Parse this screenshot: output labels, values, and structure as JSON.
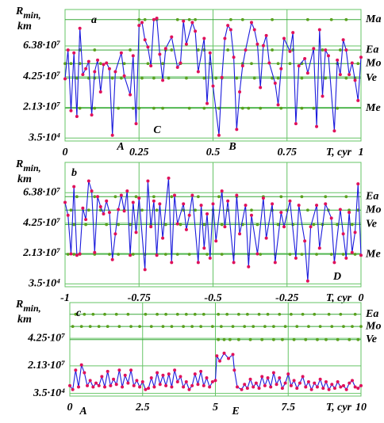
{
  "chart_data": [
    {
      "type": "line",
      "panel": "a",
      "ylabel": {
        "symbol": "R",
        "subscript": "min,",
        "unit": "km"
      },
      "xlabel": "T, cyr",
      "xlim": [
        0,
        1
      ],
      "xticks": [
        0,
        0.25,
        0.5,
        0.75,
        1
      ],
      "ylim": [
        -2000000.0,
        89000000.0
      ],
      "yticks": [
        {
          "value": 35000.0,
          "label": "3.5·10⁴"
        },
        {
          "value": 21300000.0,
          "label": "2.13·10⁷"
        },
        {
          "value": 42500000.0,
          "label": "4.25·10⁷"
        },
        {
          "value": 63800000.0,
          "label": "6.38·10⁷"
        }
      ],
      "line_color": "#1a1adc",
      "marker_color": "#e0105a",
      "planet_color": "#5aa01e",
      "grid": true,
      "x": [
        0,
        0.01,
        0.02,
        0.03,
        0.04,
        0.05,
        0.06,
        0.07,
        0.08,
        0.09,
        0.1,
        0.11,
        0.12,
        0.13,
        0.14,
        0.15,
        0.16,
        0.17,
        0.19,
        0.2,
        0.22,
        0.23,
        0.24,
        0.25,
        0.26,
        0.27,
        0.28,
        0.29,
        0.3,
        0.31,
        0.32,
        0.33,
        0.34,
        0.36,
        0.38,
        0.39,
        0.4,
        0.41,
        0.43,
        0.44,
        0.45,
        0.47,
        0.48,
        0.49,
        0.5,
        0.52,
        0.53,
        0.54,
        0.55,
        0.56,
        0.57,
        0.58,
        0.59,
        0.6,
        0.61,
        0.63,
        0.64,
        0.65,
        0.66,
        0.67,
        0.68,
        0.69,
        0.71,
        0.72,
        0.73,
        0.74,
        0.76,
        0.77,
        0.78,
        0.79,
        0.81,
        0.82,
        0.84,
        0.85,
        0.86,
        0.87,
        0.88,
        0.89,
        0.91,
        0.92,
        0.93,
        0.94,
        0.95,
        0.96,
        0.97,
        0.98,
        0.99,
        1.0
      ],
      "values": [
        41000000.0,
        61000000.0,
        19000000.0,
        59000000.0,
        15000000.0,
        76000000.0,
        44000000.0,
        48000000.0,
        53000000.0,
        16000000.0,
        46000000.0,
        54000000.0,
        32000000.0,
        51000000.0,
        52000000.0,
        48000000.0,
        2000000.0,
        46000000.0,
        59000000.0,
        43000000.0,
        30000000.0,
        57000000.0,
        10000000.0,
        78000000.0,
        80000000.0,
        68000000.0,
        63000000.0,
        50000000.0,
        82000000.0,
        83000000.0,
        58000000.0,
        40000000.0,
        62000000.0,
        70000000.0,
        49000000.0,
        52000000.0,
        81000000.0,
        65000000.0,
        80000000.0,
        74000000.0,
        46000000.0,
        69000000.0,
        24000000.0,
        59000000.0,
        36000000.0,
        2000000.0,
        42000000.0,
        69000000.0,
        78000000.0,
        75000000.0,
        56000000.0,
        6000000.0,
        32000000.0,
        50000000.0,
        61000000.0,
        80000000.0,
        75000000.0,
        65000000.0,
        35000000.0,
        64000000.0,
        71000000.0,
        52000000.0,
        38000000.0,
        23000000.0,
        48000000.0,
        69000000.0,
        60000000.0,
        73000000.0,
        10000000.0,
        50000000.0,
        55000000.0,
        45000000.0,
        62000000.0,
        8000000.0,
        75000000.0,
        29000000.0,
        61000000.0,
        57000000.0,
        5000000.0,
        54000000.0,
        44000000.0,
        68000000.0,
        61000000.0,
        44000000.0,
        52000000.0,
        40000000.0,
        26000000.0,
        56000000.0
      ],
      "planets": [
        {
          "name": "Ma",
          "value": 82000000.0,
          "x": [
            0.25,
            0.27,
            0.31,
            0.38,
            0.42,
            0.44,
            0.56,
            0.6,
            0.7,
            0.82,
            0.9,
            0.95
          ]
        },
        {
          "name": "Ea",
          "value": 61000000.0,
          "x": [
            0.05,
            0.1,
            0.22,
            0.34,
            0.36,
            0.45,
            0.47,
            0.55,
            0.7,
            0.77,
            0.87,
            0.93
          ]
        },
        {
          "name": "Mo",
          "value": 51600000.0,
          "x": [
            0.0,
            0.02,
            0.05,
            0.12,
            0.2,
            0.28,
            0.33,
            0.39,
            0.49,
            0.6,
            0.63,
            0.72,
            0.76,
            0.8,
            0.92,
            0.99
          ]
        },
        {
          "name": "Ve",
          "value": 41500000.0,
          "x": [
            0.04,
            0.08,
            0.1,
            0.16,
            0.19,
            0.26,
            0.3,
            0.35,
            0.41,
            0.47,
            0.51,
            0.53,
            0.58,
            0.64,
            0.7,
            0.72,
            0.8,
            0.88,
            0.95,
            0.98
          ]
        },
        {
          "name": "Me",
          "value": 20700000.0,
          "x": [
            0.05,
            0.09,
            0.1,
            0.18,
            0.23,
            0.25,
            0.3,
            0.33,
            0.42,
            0.47,
            0.52,
            0.6,
            0.62,
            0.66,
            0.73,
            0.8,
            0.84,
            0.92
          ]
        }
      ],
      "annotations": [
        "A",
        "B",
        "C"
      ]
    },
    {
      "type": "line",
      "panel": "b",
      "ylabel": {
        "symbol": "R",
        "subscript": "min,",
        "unit": "km"
      },
      "xlabel": "T, cyr",
      "xlim": [
        -1,
        0
      ],
      "xticks": [
        -1,
        -0.75,
        -0.5,
        -0.25,
        0
      ],
      "ylim": [
        -2000000.0,
        85000000.0
      ],
      "yticks": [
        {
          "value": 35000.0,
          "label": "3.5·10⁴"
        },
        {
          "value": 21300000.0,
          "label": "2.13·10⁷"
        },
        {
          "value": 42500000.0,
          "label": "4.25·10⁷"
        },
        {
          "value": 63800000.0,
          "label": "6.38·10⁷"
        }
      ],
      "line_color": "#1a1adc",
      "marker_color": "#e0105a",
      "planet_color": "#5aa01e",
      "grid": true,
      "x": [
        -1,
        -0.99,
        -0.98,
        -0.97,
        -0.96,
        -0.95,
        -0.94,
        -0.93,
        -0.92,
        -0.91,
        -0.9,
        -0.89,
        -0.88,
        -0.87,
        -0.86,
        -0.85,
        -0.84,
        -0.83,
        -0.82,
        -0.81,
        -0.8,
        -0.79,
        -0.78,
        -0.77,
        -0.76,
        -0.75,
        -0.73,
        -0.72,
        -0.71,
        -0.7,
        -0.69,
        -0.68,
        -0.67,
        -0.65,
        -0.64,
        -0.63,
        -0.62,
        -0.6,
        -0.59,
        -0.58,
        -0.57,
        -0.55,
        -0.54,
        -0.53,
        -0.52,
        -0.51,
        -0.5,
        -0.49,
        -0.47,
        -0.46,
        -0.45,
        -0.43,
        -0.42,
        -0.41,
        -0.39,
        -0.38,
        -0.37,
        -0.35,
        -0.33,
        -0.32,
        -0.3,
        -0.29,
        -0.27,
        -0.26,
        -0.24,
        -0.22,
        -0.21,
        -0.19,
        -0.18,
        -0.17,
        -0.15,
        -0.14,
        -0.12,
        -0.1,
        -0.09,
        -0.07,
        -0.06,
        -0.05,
        -0.04,
        -0.03,
        -0.02,
        -0.01,
        0
      ],
      "values": [
        57000000.0,
        48000000.0,
        21000000.0,
        68000000.0,
        20000000.0,
        21000000.0,
        53000000.0,
        45000000.0,
        72000000.0,
        65000000.0,
        22000000.0,
        61000000.0,
        54000000.0,
        49000000.0,
        58000000.0,
        50000000.0,
        17000000.0,
        35000000.0,
        52000000.0,
        62000000.0,
        51000000.0,
        65000000.0,
        20000000.0,
        57000000.0,
        36000000.0,
        60000000.0,
        10000000.0,
        72000000.0,
        40000000.0,
        58000000.0,
        20000000.0,
        56000000.0,
        32000000.0,
        74000000.0,
        15000000.0,
        62000000.0,
        42000000.0,
        56000000.0,
        38000000.0,
        48000000.0,
        62000000.0,
        15000000.0,
        55000000.0,
        25000000.0,
        49000000.0,
        18000000.0,
        56000000.0,
        30000000.0,
        65000000.0,
        40000000.0,
        58000000.0,
        15000000.0,
        62000000.0,
        35000000.0,
        55000000.0,
        12000000.0,
        48000000.0,
        21000000.0,
        60000000.0,
        32000000.0,
        56000000.0,
        15000000.0,
        50000000.0,
        40000000.0,
        58000000.0,
        18000000.0,
        55000000.0,
        30000000.0,
        2000000.0,
        40000000.0,
        55000000.0,
        25000000.0,
        56000000.0,
        46000000.0,
        15000000.0,
        52000000.0,
        35000000.0,
        18000000.0,
        50000000.0,
        22000000.0,
        36000000.0,
        70000000.0,
        20000000.0
      ],
      "planets": [
        {
          "name": "Ea",
          "value": 61000000.0,
          "x": [
            -0.96,
            -0.9,
            -0.83,
            -0.76,
            -0.7,
            -0.64,
            -0.55,
            -0.48,
            -0.42,
            -0.33,
            -0.27,
            -0.2,
            -0.12,
            -0.05
          ]
        },
        {
          "name": "Mo",
          "value": 51600000.0,
          "x": [
            -0.98,
            -0.92,
            -0.88,
            -0.8,
            -0.74,
            -0.69,
            -0.6,
            -0.56,
            -0.5,
            -0.45,
            -0.37,
            -0.3,
            -0.25,
            -0.18,
            -0.11,
            -0.04,
            -0.01
          ]
        },
        {
          "name": "Ve",
          "value": 41500000.0,
          "x": [
            -0.97,
            -0.93,
            -0.86,
            -0.82,
            -0.78,
            -0.71,
            -0.66,
            -0.61,
            -0.53,
            -0.47,
            -0.4,
            -0.35,
            -0.28,
            -0.23,
            -0.16,
            -0.13,
            -0.08,
            -0.03
          ]
        },
        {
          "name": "Me",
          "value": 20700000.0,
          "x": [
            -0.99,
            -0.97,
            -0.95,
            -0.9,
            -0.85,
            -0.82,
            -0.77,
            -0.73,
            -0.69,
            -0.66,
            -0.62,
            -0.58,
            -0.52,
            -0.47,
            -0.43,
            -0.38,
            -0.34,
            -0.29,
            -0.24,
            -0.2,
            -0.15,
            -0.1,
            -0.06,
            -0.02
          ]
        }
      ],
      "annotations": [
        "D"
      ]
    },
    {
      "type": "line",
      "panel": "c",
      "ylabel": {
        "symbol": "R",
        "subscript": "min,",
        "unit": "km"
      },
      "xlabel": "T, cyr",
      "xlim": [
        0,
        10
      ],
      "xticks": [
        0,
        2.5,
        5,
        7.5,
        10
      ],
      "ylim": [
        -2000000.0,
        70000000.0
      ],
      "yticks": [
        {
          "value": 35000.0,
          "label": "3.5·10⁴"
        },
        {
          "value": 21300000.0,
          "label": "2.13·10⁷"
        },
        {
          "value": 42500000.0,
          "label": "4.25·10⁷"
        }
      ],
      "line_color": "#1a1adc",
      "marker_color": "#e0105a",
      "planet_color": "#5aa01e",
      "grid": true,
      "x": [
        0,
        0.1,
        0.2,
        0.3,
        0.4,
        0.5,
        0.6,
        0.7,
        0.8,
        0.9,
        1.0,
        1.1,
        1.2,
        1.3,
        1.4,
        1.5,
        1.6,
        1.7,
        1.8,
        1.9,
        2.0,
        2.1,
        2.2,
        2.3,
        2.4,
        2.5,
        2.6,
        2.7,
        2.8,
        2.9,
        3.0,
        3.1,
        3.2,
        3.3,
        3.4,
        3.5,
        3.6,
        3.7,
        3.8,
        3.9,
        4.0,
        4.1,
        4.2,
        4.3,
        4.4,
        4.5,
        4.6,
        4.7,
        4.8,
        4.9,
        5.0,
        5.05,
        5.15,
        5.3,
        5.45,
        5.6,
        5.65,
        5.75,
        5.9,
        6.0,
        6.1,
        6.2,
        6.3,
        6.4,
        6.5,
        6.6,
        6.7,
        6.8,
        6.9,
        7.0,
        7.1,
        7.2,
        7.3,
        7.4,
        7.5,
        7.6,
        7.7,
        7.8,
        7.9,
        8.0,
        8.1,
        8.2,
        8.3,
        8.4,
        8.5,
        8.6,
        8.7,
        8.8,
        8.9,
        9.0,
        9.1,
        9.2,
        9.3,
        9.4,
        9.5,
        9.6,
        9.7,
        9.8,
        9.9,
        10
      ],
      "values": [
        6000000.0,
        3000000.0,
        18000000.0,
        5000000.0,
        22000000.0,
        16000000.0,
        6000000.0,
        10000000.0,
        5000000.0,
        8000000.0,
        6000000.0,
        13000000.0,
        5000000.0,
        17000000.0,
        6000000.0,
        11000000.0,
        7000000.0,
        18000000.0,
        5000000.0,
        14000000.0,
        8000000.0,
        18000000.0,
        6000000.0,
        10000000.0,
        5000000.0,
        9000000.0,
        3000000.0,
        4000000.0,
        12000000.0,
        5000000.0,
        16000000.0,
        7000000.0,
        14000000.0,
        6000000.0,
        15000000.0,
        5000000.0,
        18000000.0,
        9000000.0,
        13000000.0,
        5000000.0,
        9000000.0,
        3000000.0,
        6000000.0,
        15000000.0,
        7000000.0,
        17000000.0,
        6000000.0,
        12000000.0,
        5000000.0,
        9000000.0,
        10000000.0,
        29000000.0,
        25000000.0,
        31000000.0,
        27000000.0,
        30000000.0,
        18000000.0,
        5000000.0,
        3000000.0,
        7000000.0,
        4000000.0,
        11000000.0,
        5000000.0,
        8000000.0,
        4000000.0,
        13000000.0,
        6000000.0,
        12000000.0,
        5000000.0,
        16000000.0,
        7000000.0,
        12000000.0,
        4000000.0,
        8000000.0,
        15000000.0,
        6000000.0,
        10000000.0,
        4000000.0,
        8000000.0,
        13000000.0,
        5000000.0,
        9000000.0,
        3000000.0,
        8000000.0,
        5000000.0,
        11000000.0,
        4000000.0,
        9000000.0,
        3000000.0,
        7000000.0,
        4000000.0,
        9000000.0,
        5000000.0,
        6000000.0,
        3000000.0,
        8000000.0,
        10000000.0,
        5000000.0,
        4000000.0,
        6000000.0
      ],
      "planets": [
        {
          "name": "Ea",
          "value": 61000000.0,
          "x": [
            0.2,
            0.5,
            0.8,
            1.2,
            1.6,
            2.0,
            2.6,
            3.0,
            3.3,
            3.7,
            4.0,
            4.3,
            4.6,
            5.1,
            5.4,
            5.8,
            6.1,
            6.5,
            6.8,
            7.2,
            7.6,
            8.0,
            8.4,
            8.9,
            9.3,
            9.8
          ]
        },
        {
          "name": "Mo",
          "value": 51600000.0,
          "x": [
            0.1,
            0.4,
            0.7,
            1.0,
            1.3,
            1.7,
            2.1,
            2.4,
            2.8,
            3.2,
            3.5,
            3.9,
            4.2,
            4.5,
            4.9,
            5.2,
            5.6,
            6.0,
            6.3,
            6.7,
            7.0,
            7.4,
            7.8,
            8.2,
            8.6,
            9.0,
            9.4,
            9.7,
            10
          ]
        },
        {
          "name": "Ve",
          "value": 41500000.0,
          "x": [
            5.1,
            5.3,
            5.5,
            5.8,
            6.2,
            6.6,
            7.0,
            7.3,
            7.7,
            8.1,
            8.5,
            8.8,
            9.2,
            9.6,
            9.9
          ]
        }
      ],
      "annotations": [
        "A",
        "E"
      ]
    }
  ]
}
